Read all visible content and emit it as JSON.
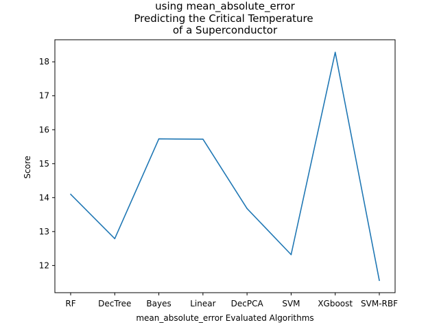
{
  "chart_data": {
    "type": "line",
    "title_lines": [
      "using mean_absolute_error",
      "Predicting the Critical Temperature",
      "of a Superconductor"
    ],
    "xlabel": "mean_absolute_error Evaluated Algorithms",
    "ylabel": "Score",
    "categories": [
      "RF",
      "DecTree",
      "Bayes",
      "Linear",
      "DecPCA",
      "SVM",
      "XGboost",
      "SVM-RBF"
    ],
    "series": [
      {
        "values": [
          14.1,
          12.79,
          15.73,
          15.72,
          13.68,
          12.32,
          18.28,
          11.56
        ],
        "color": "#1f77b4"
      }
    ],
    "yticks": [
      12,
      13,
      14,
      15,
      16,
      17,
      18
    ],
    "ylim": [
      11.2,
      18.65
    ],
    "grid": false,
    "legend": "none"
  }
}
